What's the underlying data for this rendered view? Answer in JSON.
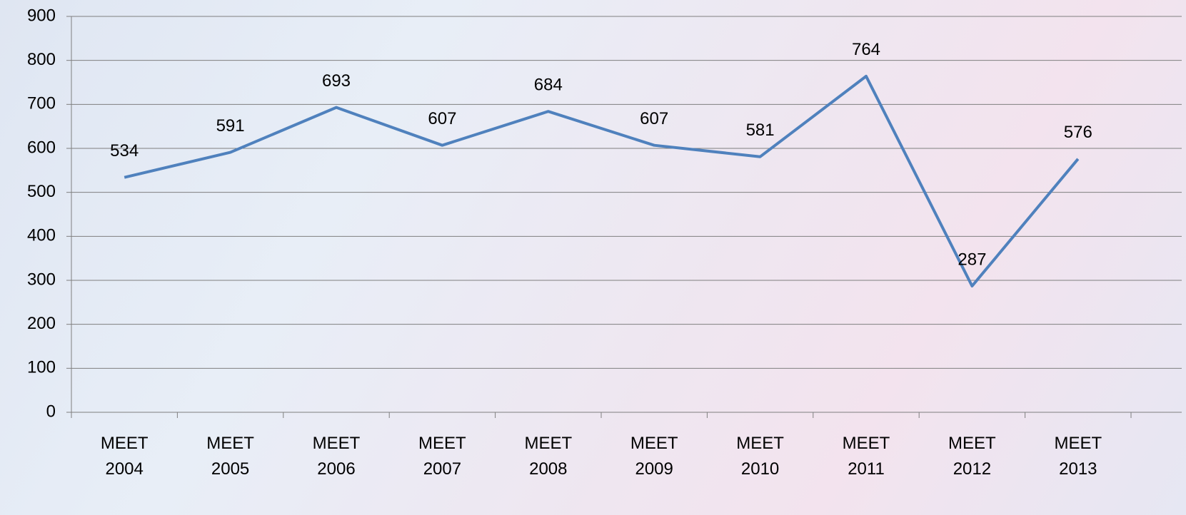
{
  "chart_data": {
    "type": "line",
    "categories": [
      "MEET 2004",
      "MEET 2005",
      "MEET 2006",
      "MEET 2007",
      "MEET 2008",
      "MEET 2009",
      "MEET 2010",
      "MEET 2011",
      "MEET 2012",
      "MEET 2013"
    ],
    "series": [
      {
        "name": "MEET",
        "color": "#4f81bd",
        "values": [
          534,
          591,
          693,
          607,
          684,
          607,
          581,
          764,
          287,
          576
        ]
      }
    ],
    "ylim": [
      0,
      900
    ],
    "yticks": [
      0,
      100,
      200,
      300,
      400,
      500,
      600,
      700,
      800,
      900
    ],
    "grid": true
  }
}
